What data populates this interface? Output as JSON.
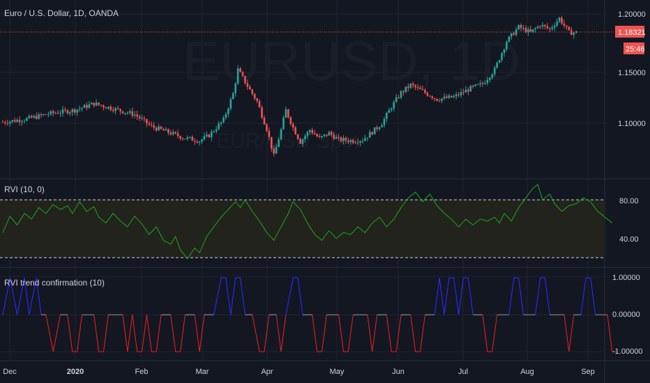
{
  "symbol_header": "Euro / U.S. Dollar, 1D, OANDA",
  "watermark": {
    "symbol": "EURUSD, 1D",
    "sub": "EUR/USD Spot"
  },
  "price_badge": {
    "value": "1.18321",
    "countdown": "25:46"
  },
  "x_axis": {
    "labels": [
      "Dec",
      "2020",
      "Feb",
      "Mar",
      "Apr",
      "May",
      "Jun",
      "Jul",
      "Aug",
      "Sep"
    ]
  },
  "colors": {
    "background": "#131722",
    "grid": "#1f2330",
    "up": "#26a69a",
    "down": "#ef5350",
    "rvi_line": "#1e9e1e",
    "band_fill": "#22231c",
    "level_line": "#d1d4dc",
    "conf_up": "#2a2aff",
    "conf_down": "#e01e1e",
    "conf_neutral": "#9a9a9a",
    "price_line": "#ef5350"
  },
  "chart_data": [
    {
      "type": "candlestick",
      "title": "Euro / U.S. Dollar, 1D, OANDA",
      "y_ticks": [
        "1.20000",
        "1.15000",
        "1.10000"
      ],
      "ylim": [
        1.062,
        1.205
      ],
      "last_price": 1.18321,
      "x": [
        "Dec",
        "2020",
        "Feb",
        "Mar",
        "Apr",
        "May",
        "Jun",
        "Jul",
        "Aug",
        "Sep"
      ],
      "close_path": [
        [
          0,
          1.101
        ],
        [
          10,
          1.104
        ],
        [
          20,
          1.109
        ],
        [
          30,
          1.112
        ],
        [
          38,
          1.118
        ],
        [
          45,
          1.114
        ],
        [
          55,
          1.108
        ],
        [
          62,
          1.097
        ],
        [
          70,
          1.091
        ],
        [
          75,
          1.087
        ],
        [
          82,
          1.084
        ],
        [
          86,
          1.089
        ],
        [
          92,
          1.103
        ],
        [
          96,
          1.127
        ],
        [
          98,
          1.149
        ],
        [
          102,
          1.134
        ],
        [
          106,
          1.12
        ],
        [
          110,
          1.095
        ],
        [
          113,
          1.07
        ],
        [
          116,
          1.094
        ],
        [
          118,
          1.112
        ],
        [
          121,
          1.096
        ],
        [
          124,
          1.083
        ],
        [
          128,
          1.094
        ],
        [
          132,
          1.086
        ],
        [
          136,
          1.091
        ],
        [
          140,
          1.085
        ],
        [
          146,
          1.084
        ],
        [
          150,
          1.085
        ],
        [
          154,
          1.092
        ],
        [
          158,
          1.1
        ],
        [
          162,
          1.115
        ],
        [
          166,
          1.128
        ],
        [
          170,
          1.135
        ],
        [
          176,
          1.128
        ],
        [
          181,
          1.122
        ],
        [
          188,
          1.124
        ],
        [
          195,
          1.132
        ],
        [
          200,
          1.136
        ],
        [
          205,
          1.149
        ],
        [
          210,
          1.175
        ],
        [
          215,
          1.188
        ],
        [
          220,
          1.183
        ],
        [
          224,
          1.19
        ],
        [
          228,
          1.186
        ],
        [
          232,
          1.196
        ],
        [
          236,
          1.183
        ],
        [
          239,
          1.183
        ]
      ]
    },
    {
      "type": "line",
      "title": "RVI (10, 0)",
      "y_ticks": [
        "80.00",
        "40.00"
      ],
      "levels": [
        80,
        20
      ],
      "ylim": [
        12,
        103
      ],
      "series": [
        {
          "name": "RVI",
          "values": [
            [
              0,
              46
            ],
            [
              3,
              63
            ],
            [
              6,
              54
            ],
            [
              9,
              66
            ],
            [
              12,
              60
            ],
            [
              15,
              72
            ],
            [
              18,
              66
            ],
            [
              21,
              75
            ],
            [
              24,
              70
            ],
            [
              27,
              74
            ],
            [
              29,
              66
            ],
            [
              32,
              78
            ],
            [
              35,
              68
            ],
            [
              38,
              73
            ],
            [
              40,
              62
            ],
            [
              43,
              56
            ],
            [
              46,
              66
            ],
            [
              49,
              58
            ],
            [
              52,
              52
            ],
            [
              55,
              63
            ],
            [
              58,
              55
            ],
            [
              61,
              44
            ],
            [
              64,
              52
            ],
            [
              67,
              38
            ],
            [
              70,
              34
            ],
            [
              72,
              42
            ],
            [
              74,
              28
            ],
            [
              77,
              19
            ],
            [
              80,
              30
            ],
            [
              82,
              25
            ],
            [
              85,
              42
            ],
            [
              88,
              52
            ],
            [
              91,
              62
            ],
            [
              94,
              70
            ],
            [
              97,
              78
            ],
            [
              99,
              72
            ],
            [
              101,
              80
            ],
            [
              104,
              68
            ],
            [
              107,
              58
            ],
            [
              110,
              46
            ],
            [
              113,
              38
            ],
            [
              116,
              52
            ],
            [
              119,
              66
            ],
            [
              121,
              78
            ],
            [
              124,
              70
            ],
            [
              127,
              56
            ],
            [
              130,
              44
            ],
            [
              133,
              38
            ],
            [
              136,
              48
            ],
            [
              139,
              40
            ],
            [
              142,
              46
            ],
            [
              145,
              44
            ],
            [
              148,
              52
            ],
            [
              151,
              46
            ],
            [
              154,
              56
            ],
            [
              157,
              62
            ],
            [
              160,
              52
            ],
            [
              163,
              60
            ],
            [
              166,
              72
            ],
            [
              169,
              82
            ],
            [
              172,
              88
            ],
            [
              175,
              78
            ],
            [
              178,
              86
            ],
            [
              181,
              74
            ],
            [
              184,
              66
            ],
            [
              187,
              60
            ],
            [
              190,
              52
            ],
            [
              193,
              60
            ],
            [
              196,
              54
            ],
            [
              199,
              60
            ],
            [
              202,
              58
            ],
            [
              205,
              62
            ],
            [
              207,
              56
            ],
            [
              209,
              66
            ],
            [
              212,
              58
            ],
            [
              215,
              72
            ],
            [
              218,
              82
            ],
            [
              221,
              92
            ],
            [
              223,
              96
            ],
            [
              225,
              80
            ],
            [
              228,
              86
            ],
            [
              230,
              76
            ],
            [
              233,
              68
            ],
            [
              236,
              74
            ],
            [
              239,
              76
            ],
            [
              242,
              82
            ],
            [
              245,
              78
            ],
            [
              248,
              68
            ],
            [
              251,
              62
            ],
            [
              254,
              56
            ]
          ]
        }
      ]
    },
    {
      "type": "step",
      "title": "RVI trend confirmation (10)",
      "y_ticks": [
        "1.00000",
        "0.00000",
        "-1.00000"
      ],
      "ylim": [
        -1.25,
        1.25
      ],
      "series": [
        {
          "name": "RVI trend confirmation",
          "values": [
            [
              0,
              0
            ],
            [
              3,
              1
            ],
            [
              6,
              0
            ],
            [
              9,
              1
            ],
            [
              11,
              0
            ],
            [
              14,
              1
            ],
            [
              16,
              0
            ],
            [
              18,
              0
            ],
            [
              21,
              -1
            ],
            [
              24,
              0
            ],
            [
              27,
              0
            ],
            [
              29,
              -1
            ],
            [
              31,
              -1
            ],
            [
              33,
              0
            ],
            [
              38,
              0
            ],
            [
              40,
              -1
            ],
            [
              42,
              -1
            ],
            [
              44,
              0
            ],
            [
              50,
              0
            ],
            [
              52,
              -1
            ],
            [
              54,
              0
            ],
            [
              56,
              -1
            ],
            [
              58,
              -1
            ],
            [
              60,
              0
            ],
            [
              62,
              -1
            ],
            [
              64,
              -1
            ],
            [
              66,
              0
            ],
            [
              70,
              0
            ],
            [
              72,
              -1
            ],
            [
              74,
              -1
            ],
            [
              76,
              0
            ],
            [
              80,
              0
            ],
            [
              82,
              -1
            ],
            [
              84,
              0
            ],
            [
              88,
              0
            ],
            [
              91,
              1
            ],
            [
              93,
              1
            ],
            [
              95,
              0
            ],
            [
              97,
              1
            ],
            [
              99,
              1
            ],
            [
              101,
              0
            ],
            [
              104,
              0
            ],
            [
              107,
              -1
            ],
            [
              109,
              -1
            ],
            [
              111,
              0
            ],
            [
              114,
              0
            ],
            [
              116,
              -1
            ],
            [
              118,
              0
            ],
            [
              121,
              1
            ],
            [
              123,
              1
            ],
            [
              125,
              0
            ],
            [
              129,
              0
            ],
            [
              131,
              -1
            ],
            [
              133,
              -1
            ],
            [
              135,
              0
            ],
            [
              140,
              0
            ],
            [
              142,
              -1
            ],
            [
              144,
              -1
            ],
            [
              146,
              0
            ],
            [
              152,
              0
            ],
            [
              154,
              -1
            ],
            [
              156,
              0
            ],
            [
              160,
              0
            ],
            [
              162,
              -1
            ],
            [
              164,
              -1
            ],
            [
              166,
              0
            ],
            [
              170,
              0
            ],
            [
              172,
              -1
            ],
            [
              174,
              -1
            ],
            [
              176,
              0
            ],
            [
              180,
              0
            ],
            [
              182,
              1
            ],
            [
              184,
              0
            ],
            [
              186,
              1
            ],
            [
              188,
              1
            ],
            [
              190,
              0
            ],
            [
              192,
              1
            ],
            [
              194,
              1
            ],
            [
              196,
              0
            ],
            [
              200,
              0
            ],
            [
              202,
              -1
            ],
            [
              204,
              -1
            ],
            [
              206,
              0
            ],
            [
              211,
              0
            ],
            [
              213,
              1
            ],
            [
              215,
              1
            ],
            [
              217,
              0
            ],
            [
              222,
              0
            ],
            [
              224,
              1
            ],
            [
              226,
              1
            ],
            [
              228,
              0
            ],
            [
              234,
              0
            ],
            [
              236,
              -1
            ],
            [
              238,
              0
            ],
            [
              241,
              0
            ],
            [
              243,
              1
            ],
            [
              245,
              1
            ],
            [
              247,
              0
            ],
            [
              252,
              0
            ],
            [
              254,
              -1
            ],
            [
              256,
              -1
            ]
          ]
        }
      ]
    }
  ]
}
